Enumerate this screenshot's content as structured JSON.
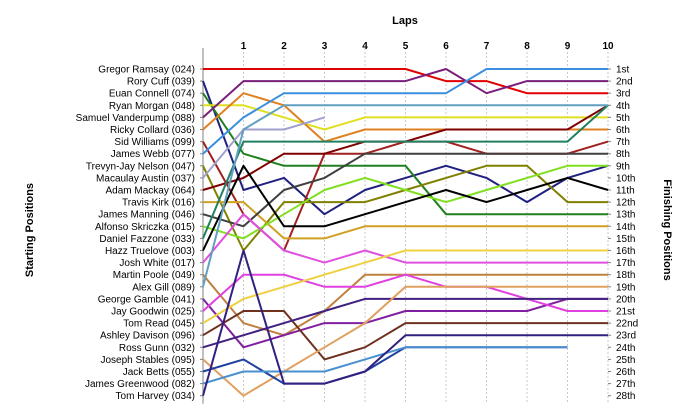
{
  "chart_data": {
    "type": "line",
    "title": "",
    "xlabel": "Laps",
    "ylabel_left": "Starting Positions",
    "ylabel_right": "Finishing Positions",
    "x": [
      0,
      1,
      2,
      3,
      4,
      5,
      6,
      7,
      8,
      9,
      10
    ],
    "lap_labels": [
      "1",
      "2",
      "3",
      "4",
      "5",
      "6",
      "7",
      "8",
      "9",
      "10"
    ],
    "finishing_labels": [
      "1st",
      "2nd",
      "3rd",
      "4th",
      "5th",
      "6th",
      "7th",
      "8th",
      "9th",
      "10th",
      "11th",
      "12th",
      "13th",
      "14th",
      "15th",
      "16th",
      "17th",
      "18th",
      "19th",
      "20th",
      "21st",
      "22nd",
      "23rd",
      "24th",
      "25th",
      "26th",
      "27th",
      "28th"
    ],
    "series": [
      {
        "name": "Gregor Ramsay (024)",
        "color": "#e00000",
        "positions": [
          1,
          1,
          1,
          1,
          1,
          1,
          2,
          2,
          3,
          3,
          3
        ]
      },
      {
        "name": "Rory Cuff (039)",
        "color": "#202080",
        "positions": [
          2,
          11,
          10,
          13,
          11,
          10,
          9,
          10,
          12,
          10,
          9
        ]
      },
      {
        "name": "Euan Connell (074)",
        "color": "#208020",
        "positions": [
          3,
          8,
          9,
          9,
          9,
          9,
          13,
          13,
          13,
          13,
          13
        ]
      },
      {
        "name": "Ryan Morgan (048)",
        "color": "#e0e020",
        "positions": [
          4,
          4,
          5,
          6,
          5,
          5,
          5,
          5,
          5,
          5,
          5
        ]
      },
      {
        "name": "Samuel Vanderpump (088)",
        "color": "#7a1f7a",
        "positions": [
          5,
          2,
          2,
          2,
          2,
          2,
          1,
          3,
          2,
          2,
          2
        ]
      },
      {
        "name": "Ricky Collard (036)",
        "color": "#e08020",
        "positions": [
          6,
          3,
          4,
          7,
          6,
          6,
          6,
          6,
          6,
          6,
          6
        ]
      },
      {
        "name": "Sid Williams (099)",
        "color": "#a02020",
        "positions": [
          7,
          13,
          16,
          8,
          8,
          7,
          7,
          8,
          8,
          8,
          7
        ]
      },
      {
        "name": "James Webb (077)",
        "color": "#3b8fe0",
        "positions": [
          8,
          5,
          3,
          3,
          3,
          3,
          3,
          1,
          1,
          1,
          1
        ]
      },
      {
        "name": "Trevyn-Jay Nelson (047)",
        "color": "#808000",
        "positions": [
          9,
          16,
          12,
          12,
          12,
          11,
          10,
          9,
          9,
          12,
          12
        ]
      },
      {
        "name": "Macaulay Austin (037)",
        "color": "#a0a0d0",
        "positions": [
          10,
          6,
          6,
          5,
          null,
          null,
          null,
          null,
          null,
          null,
          null
        ]
      },
      {
        "name": "Adam Mackay (064)",
        "color": "#800000",
        "positions": [
          11,
          10,
          8,
          8,
          7,
          7,
          6,
          6,
          6,
          6,
          4
        ]
      },
      {
        "name": "Travis Kirk (016)",
        "color": "#d0a020",
        "positions": [
          12,
          12,
          15,
          15,
          14,
          14,
          14,
          14,
          14,
          14,
          14
        ]
      },
      {
        "name": "James Manning (046)",
        "color": "#404040",
        "positions": [
          13,
          14,
          11,
          10,
          8,
          8,
          8,
          8,
          8,
          8,
          8
        ]
      },
      {
        "name": "Alfonso Skriczka (015)",
        "color": "#80e020",
        "positions": [
          14,
          15,
          13,
          11,
          10,
          11,
          12,
          11,
          10,
          9,
          9
        ]
      },
      {
        "name": "Daniel Fazzone (033)",
        "color": "#208060",
        "positions": [
          15,
          7,
          7,
          7,
          7,
          7,
          7,
          7,
          7,
          7,
          4
        ]
      },
      {
        "name": "Hazz Truelove (003)",
        "color": "#000000",
        "positions": [
          16,
          9,
          14,
          14,
          13,
          12,
          11,
          12,
          11,
          10,
          11
        ]
      },
      {
        "name": "Josh White (017)",
        "color": "#e050e0",
        "positions": [
          17,
          13,
          16,
          17,
          16,
          17,
          17,
          17,
          17,
          17,
          17
        ]
      },
      {
        "name": "Martin Poole (049)",
        "color": "#c08040",
        "positions": [
          18,
          22,
          23,
          21,
          18,
          18,
          18,
          18,
          18,
          18,
          18
        ]
      },
      {
        "name": "Alex Gill (089)",
        "color": "#60a0c0",
        "positions": [
          19,
          6,
          4,
          4,
          4,
          4,
          4,
          4,
          4,
          4,
          4
        ]
      },
      {
        "name": "George Gamble (041)",
        "color": "#8020a0",
        "positions": [
          20,
          24,
          23,
          22,
          22,
          21,
          21,
          21,
          21,
          20,
          20
        ]
      },
      {
        "name": "Jay Goodwin (025)",
        "color": "#e040e0",
        "positions": [
          21,
          18,
          18,
          19,
          19,
          18,
          19,
          19,
          20,
          21,
          21
        ]
      },
      {
        "name": "Tom Read (045)",
        "color": "#f0d040",
        "positions": [
          22,
          20,
          19,
          18,
          17,
          16,
          16,
          16,
          16,
          16,
          16
        ]
      },
      {
        "name": "Ashley Davison (096)",
        "color": "#703020",
        "positions": [
          23,
          21,
          21,
          25,
          24,
          22,
          22,
          22,
          22,
          22,
          22
        ]
      },
      {
        "name": "Ross Gunn (032)",
        "color": "#402080",
        "positions": [
          24,
          23,
          22,
          21,
          20,
          20,
          20,
          20,
          20,
          20,
          20
        ]
      },
      {
        "name": "Joseph Stables (095)",
        "color": "#e0a060",
        "positions": [
          25,
          28,
          26,
          24,
          22,
          19,
          19,
          19,
          19,
          19,
          19
        ]
      },
      {
        "name": "Jack Betts (055)",
        "color": "#2040a0",
        "positions": [
          26,
          25,
          27,
          27,
          26,
          24,
          24,
          24,
          24,
          24,
          null
        ]
      },
      {
        "name": "James Greenwood (082)",
        "color": "#4a90d0",
        "positions": [
          27,
          26,
          26,
          26,
          25,
          24,
          24,
          24,
          24,
          24,
          null
        ]
      },
      {
        "name": "Tom Harvey (034)",
        "color": "#302080",
        "positions": [
          28,
          16,
          27,
          27,
          26,
          23,
          23,
          23,
          23,
          23,
          23
        ]
      }
    ]
  }
}
